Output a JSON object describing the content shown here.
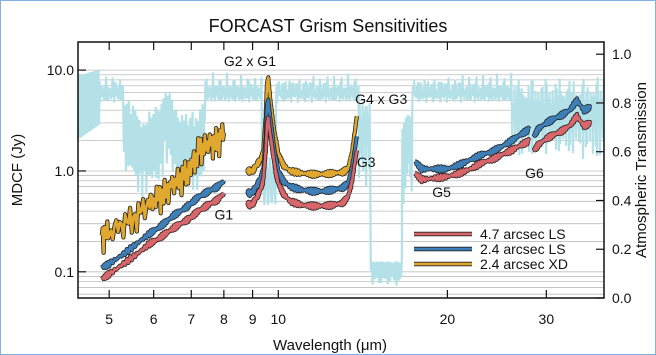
{
  "chart_data": {
    "type": "line",
    "title": "FORCAST Grism Sensitivities",
    "xlabel": "Wavelength (μm)",
    "ylabel_left": "MDCF (Jy)",
    "ylabel_right": "Atmospheric Transmission",
    "x_scale": "log",
    "y_left_scale": "log",
    "xlim": [
      4.4,
      38
    ],
    "ylim_left": [
      0.055,
      19
    ],
    "ylim_right": [
      0.0,
      1.05
    ],
    "x_ticks": [
      5,
      6,
      7,
      8,
      9,
      10,
      20,
      30
    ],
    "y_left_ticks": [
      {
        "v": 0.1,
        "t": "0.1"
      },
      {
        "v": 1,
        "t": "1.0"
      },
      {
        "v": 10,
        "t": "10.0"
      }
    ],
    "y_right_ticks": [
      {
        "v": 0.0,
        "t": "0.0"
      },
      {
        "v": 0.2,
        "t": "0.2"
      },
      {
        "v": 0.4,
        "t": "0.4"
      },
      {
        "v": 0.6,
        "t": "0.6"
      },
      {
        "v": 0.8,
        "t": "0.8"
      },
      {
        "v": 1.0,
        "t": "1.0"
      }
    ],
    "grid": "horizontal-minor",
    "legend_position": "lower-right",
    "legend": [
      {
        "label": "4.7 arcsec LS",
        "color": "#d9666a"
      },
      {
        "label": "2.4 arcsec LS",
        "color": "#3f7fb8"
      },
      {
        "label": "2.4 arcsec XD",
        "color": "#e0a82e"
      }
    ],
    "annotations": [
      {
        "text": "G2 x G1",
        "x": 8.0,
        "y": 11.0
      },
      {
        "text": "G4 x G3",
        "x": 13.7,
        "y": 4.6
      },
      {
        "text": "G3",
        "x": 13.8,
        "y": 1.1
      },
      {
        "text": "G1",
        "x": 7.7,
        "y": 0.33
      },
      {
        "text": "G5",
        "x": 18.8,
        "y": 0.55
      },
      {
        "text": "G6",
        "x": 27.5,
        "y": 0.85
      }
    ],
    "transmission_color": "#b4e1e8",
    "series": [
      {
        "name": "2.4 arcsec XD",
        "color": "#e0a82e",
        "segments": [
          {
            "x": [
              4.85,
              5.0,
              5.3,
              5.6,
              5.9,
              6.1,
              6.3,
              6.5,
              6.7,
              6.9,
              7.0,
              7.2,
              7.4,
              7.6,
              7.8,
              8.0
            ],
            "y": [
              0.23,
              0.25,
              0.3,
              0.36,
              0.5,
              0.55,
              0.62,
              0.75,
              0.85,
              1.0,
              1.1,
              1.6,
              1.8,
              1.9,
              2.0,
              2.4
            ]
          },
          {
            "x": [
              8.8,
              8.9,
              9.0,
              9.1,
              9.2,
              9.3,
              9.4,
              9.5,
              9.55,
              9.6,
              9.7,
              9.8,
              9.9,
              10.0,
              10.2,
              10.5,
              11,
              11.5,
              12,
              12.5,
              13,
              13.3,
              13.5,
              13.8
            ],
            "y": [
              1.0,
              1.0,
              1.0,
              1.1,
              1.2,
              1.3,
              1.5,
              3.5,
              7.5,
              8.0,
              4.5,
              2.8,
              2.0,
              1.5,
              1.15,
              1.0,
              0.95,
              0.93,
              0.93,
              0.95,
              0.97,
              1.05,
              1.4,
              3.5
            ]
          }
        ]
      },
      {
        "name": "2.4 arcsec LS",
        "color": "#3f7fb8",
        "segments": [
          {
            "x": [
              4.85,
              5.0,
              5.3,
              5.6,
              5.9,
              6.1,
              6.3,
              6.5,
              6.7,
              6.9,
              7.0,
              7.2,
              7.4,
              7.6,
              7.8,
              8.0
            ],
            "y": [
              0.11,
              0.12,
              0.15,
              0.19,
              0.24,
              0.27,
              0.31,
              0.36,
              0.4,
              0.45,
              0.48,
              0.55,
              0.6,
              0.65,
              0.7,
              0.8
            ]
          },
          {
            "x": [
              8.8,
              8.9,
              9.0,
              9.1,
              9.2,
              9.3,
              9.4,
              9.5,
              9.55,
              9.6,
              9.7,
              9.8,
              9.9,
              10.0,
              10.2,
              10.5,
              11,
              11.5,
              12,
              12.5,
              13,
              13.3,
              13.5,
              13.8
            ],
            "y": [
              0.62,
              0.6,
              0.62,
              0.68,
              0.75,
              0.85,
              1.0,
              2.2,
              4.6,
              4.8,
              3.0,
              1.9,
              1.3,
              1.0,
              0.8,
              0.7,
              0.65,
              0.63,
              0.63,
              0.65,
              0.68,
              0.75,
              1.0,
              2.2
            ]
          },
          {
            "x": [
              17.5,
              18,
              19,
              20,
              21,
              22,
              23,
              24,
              25,
              26,
              27,
              28
            ],
            "y": [
              1.25,
              1.05,
              1.05,
              1.05,
              1.15,
              1.3,
              1.45,
              1.55,
              1.75,
              2.0,
              2.3,
              2.6
            ]
          },
          {
            "x": [
              28.5,
              29,
              30,
              31,
              32,
              33,
              34,
              35,
              36
            ],
            "y": [
              2.2,
              2.6,
              3.0,
              3.3,
              3.6,
              4.0,
              5.0,
              4.0,
              4.3
            ]
          }
        ]
      },
      {
        "name": "4.7 arcsec LS",
        "color": "#d9666a",
        "segments": [
          {
            "x": [
              4.85,
              5.0,
              5.3,
              5.6,
              5.9,
              6.1,
              6.3,
              6.5,
              6.7,
              6.9,
              7.0,
              7.2,
              7.4,
              7.6,
              7.8,
              8.0
            ],
            "y": [
              0.085,
              0.095,
              0.12,
              0.15,
              0.19,
              0.21,
              0.24,
              0.27,
              0.3,
              0.33,
              0.35,
              0.4,
              0.44,
              0.48,
              0.52,
              0.6
            ]
          },
          {
            "x": [
              8.8,
              8.9,
              9.0,
              9.1,
              9.2,
              9.3,
              9.4,
              9.5,
              9.55,
              9.6,
              9.7,
              9.8,
              9.9,
              10.0,
              10.2,
              10.5,
              11,
              11.5,
              12,
              12.5,
              13,
              13.3,
              13.5,
              13.8
            ],
            "y": [
              0.48,
              0.46,
              0.47,
              0.52,
              0.58,
              0.66,
              0.8,
              1.6,
              3.0,
              3.2,
              2.1,
              1.4,
              0.95,
              0.75,
              0.6,
              0.5,
              0.46,
              0.45,
              0.45,
              0.46,
              0.48,
              0.55,
              0.75,
              1.6
            ]
          },
          {
            "x": [
              17.5,
              18,
              19,
              20,
              21,
              22,
              23,
              24,
              25,
              26,
              27,
              28
            ],
            "y": [
              0.95,
              0.82,
              0.85,
              0.88,
              0.95,
              1.05,
              1.2,
              1.3,
              1.45,
              1.6,
              1.8,
              2.0
            ]
          },
          {
            "x": [
              28.5,
              29,
              30,
              31,
              32,
              33,
              34,
              35,
              36
            ],
            "y": [
              1.6,
              1.8,
              2.1,
              2.3,
              2.5,
              2.8,
              3.5,
              2.8,
              3.0
            ]
          }
        ]
      }
    ]
  }
}
